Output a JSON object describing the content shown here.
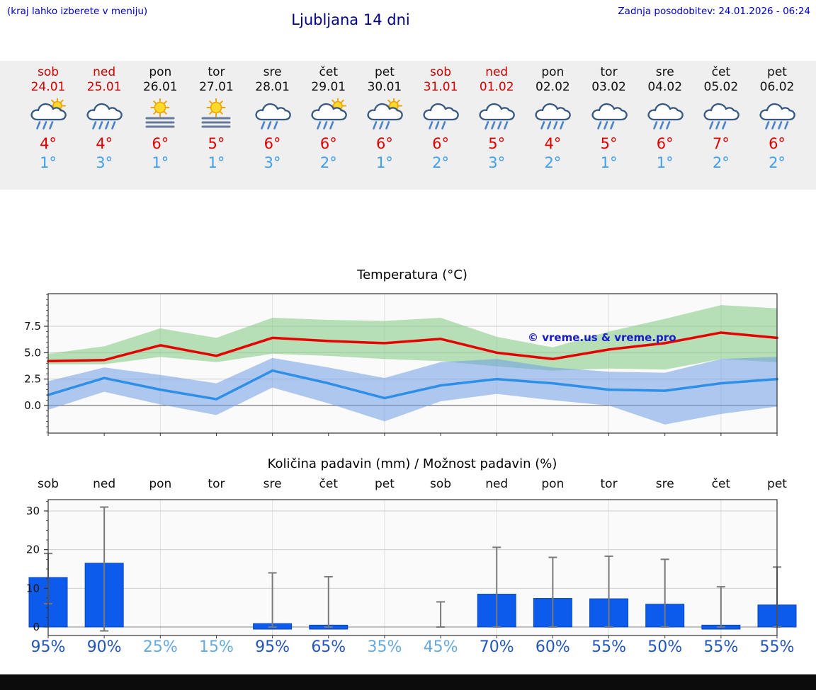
{
  "header": {
    "hint": "(kraj lahko izberete v meniju)",
    "title": "Ljubljana 14 dni",
    "last_update": "Zadnja posodobitev: 24.01.2026 - 06:24"
  },
  "forecast_days": [
    {
      "name": "sob",
      "date": "24.01",
      "is_weekend": true,
      "icon": "sun-rain",
      "high": "4°",
      "low": "1°"
    },
    {
      "name": "ned",
      "date": "25.01",
      "is_weekend": true,
      "icon": "rain-heavy",
      "high": "4°",
      "low": "3°"
    },
    {
      "name": "pon",
      "date": "26.01",
      "is_weekend": false,
      "icon": "sun-fog",
      "high": "6°",
      "low": "1°"
    },
    {
      "name": "tor",
      "date": "27.01",
      "is_weekend": false,
      "icon": "sun-fog",
      "high": "5°",
      "low": "1°"
    },
    {
      "name": "sre",
      "date": "28.01",
      "is_weekend": false,
      "icon": "rain",
      "high": "6°",
      "low": "3°"
    },
    {
      "name": "čet",
      "date": "29.01",
      "is_weekend": false,
      "icon": "sun-rain",
      "high": "6°",
      "low": "2°"
    },
    {
      "name": "pet",
      "date": "30.01",
      "is_weekend": false,
      "icon": "sun-rain",
      "high": "6°",
      "low": "1°"
    },
    {
      "name": "sob",
      "date": "31.01",
      "is_weekend": true,
      "icon": "rain",
      "high": "6°",
      "low": "2°"
    },
    {
      "name": "ned",
      "date": "01.02",
      "is_weekend": true,
      "icon": "rain-heavy",
      "high": "5°",
      "low": "3°"
    },
    {
      "name": "pon",
      "date": "02.02",
      "is_weekend": false,
      "icon": "rain-heavy",
      "high": "4°",
      "low": "2°"
    },
    {
      "name": "tor",
      "date": "03.02",
      "is_weekend": false,
      "icon": "rain",
      "high": "5°",
      "low": "1°"
    },
    {
      "name": "sre",
      "date": "04.02",
      "is_weekend": false,
      "icon": "rain",
      "high": "6°",
      "low": "1°"
    },
    {
      "name": "čet",
      "date": "05.02",
      "is_weekend": false,
      "icon": "rain",
      "high": "7°",
      "low": "2°"
    },
    {
      "name": "pet",
      "date": "06.02",
      "is_weekend": false,
      "icon": "rain-heavy",
      "high": "6°",
      "low": "2°"
    }
  ],
  "chart_data": [
    {
      "type": "line",
      "title": "Temperatura (°C)",
      "x_labels": [
        "sob 24.01",
        "ned 25.01",
        "pon 26.01",
        "tor 27.01",
        "sre 28.01",
        "čet 29.01",
        "pet 30.01",
        "sob 31.01",
        "ned 01.02",
        "pon 02.02",
        "tor 03.02",
        "sre 04.02",
        "čet 05.02",
        "pet 06.02"
      ],
      "yticks": [
        0.0,
        2.5,
        5.0,
        7.5
      ],
      "ylim": [
        -2.6,
        10.6
      ],
      "grid": true,
      "legend_position": "none",
      "watermark": "© vreme.us & vreme.pro",
      "series": [
        {
          "name": "max temperature",
          "color": "#e60000",
          "values": [
            4.2,
            4.3,
            5.7,
            4.7,
            6.4,
            6.1,
            5.9,
            6.3,
            5.0,
            4.4,
            5.3,
            5.9,
            6.9,
            6.4
          ]
        },
        {
          "name": "min temperature",
          "color": "#2e8fe8",
          "values": [
            1.0,
            2.6,
            1.5,
            0.6,
            3.3,
            2.1,
            0.7,
            1.9,
            2.5,
            2.1,
            1.5,
            1.4,
            2.1,
            2.5
          ]
        }
      ],
      "bands": [
        {
          "name": "max temperature range",
          "color": "#7ec87e",
          "upper": [
            4.9,
            5.6,
            7.3,
            6.4,
            8.3,
            8.1,
            8.0,
            8.3,
            6.5,
            5.5,
            7.0,
            8.2,
            9.5,
            9.2
          ],
          "lower": [
            3.9,
            3.9,
            4.6,
            4.1,
            4.9,
            4.7,
            4.4,
            4.2,
            3.7,
            3.3,
            3.5,
            3.4,
            4.4,
            4.1
          ]
        },
        {
          "name": "min temperature range",
          "color": "#6f9ce6",
          "upper": [
            2.3,
            3.6,
            2.9,
            2.1,
            4.5,
            3.6,
            2.6,
            4.1,
            4.4,
            3.6,
            3.2,
            3.1,
            4.4,
            4.6
          ],
          "lower": [
            -0.4,
            1.3,
            0.1,
            -0.9,
            1.7,
            0.2,
            -1.5,
            0.4,
            1.1,
            0.5,
            0.0,
            -1.8,
            -0.8,
            -0.1
          ]
        }
      ]
    },
    {
      "type": "bar",
      "title": "Količina padavin (mm) / Možnost padavin (%)",
      "categories": [
        "sob",
        "ned",
        "pon",
        "tor",
        "sre",
        "čet",
        "pet",
        "sob",
        "ned",
        "pon",
        "tor",
        "sre",
        "čet",
        "pet"
      ],
      "values_mm": [
        12.8,
        16.5,
        0,
        0,
        0.7,
        0.3,
        0,
        0,
        8.5,
        7.4,
        7.3,
        5.9,
        0.3,
        5.7
      ],
      "whisker_low": [
        6,
        -1,
        0,
        0,
        0,
        0,
        0,
        0,
        0,
        0,
        0,
        0,
        0,
        0
      ],
      "whisker_high": [
        19,
        31,
        0.3,
        0.3,
        14,
        13,
        0.3,
        6.5,
        20.6,
        18,
        18.3,
        17.5,
        10.4,
        15.5
      ],
      "probability_pct": [
        95,
        90,
        25,
        15,
        95,
        65,
        35,
        45,
        70,
        60,
        55,
        50,
        55,
        55
      ],
      "yticks": [
        0,
        10,
        20,
        30
      ],
      "ylim": [
        -2.2,
        33
      ],
      "grid": true,
      "xlabel": "",
      "ylabel": ""
    }
  ],
  "colors": {
    "link_blue": "#0000cc",
    "title_blue": "#00008b",
    "weekend_red": "#d40000",
    "weekday_dark": "#111111",
    "high_red": "#e10000",
    "low_blue": "#3fa0f0",
    "bar_blue": "#0d5bec",
    "bar_edge": "#0a46c0",
    "prob_high": "#2255bb",
    "prob_low": "#66aadd",
    "strip_bg": "#efefef",
    "watermark_blue": "#1a1acd"
  }
}
